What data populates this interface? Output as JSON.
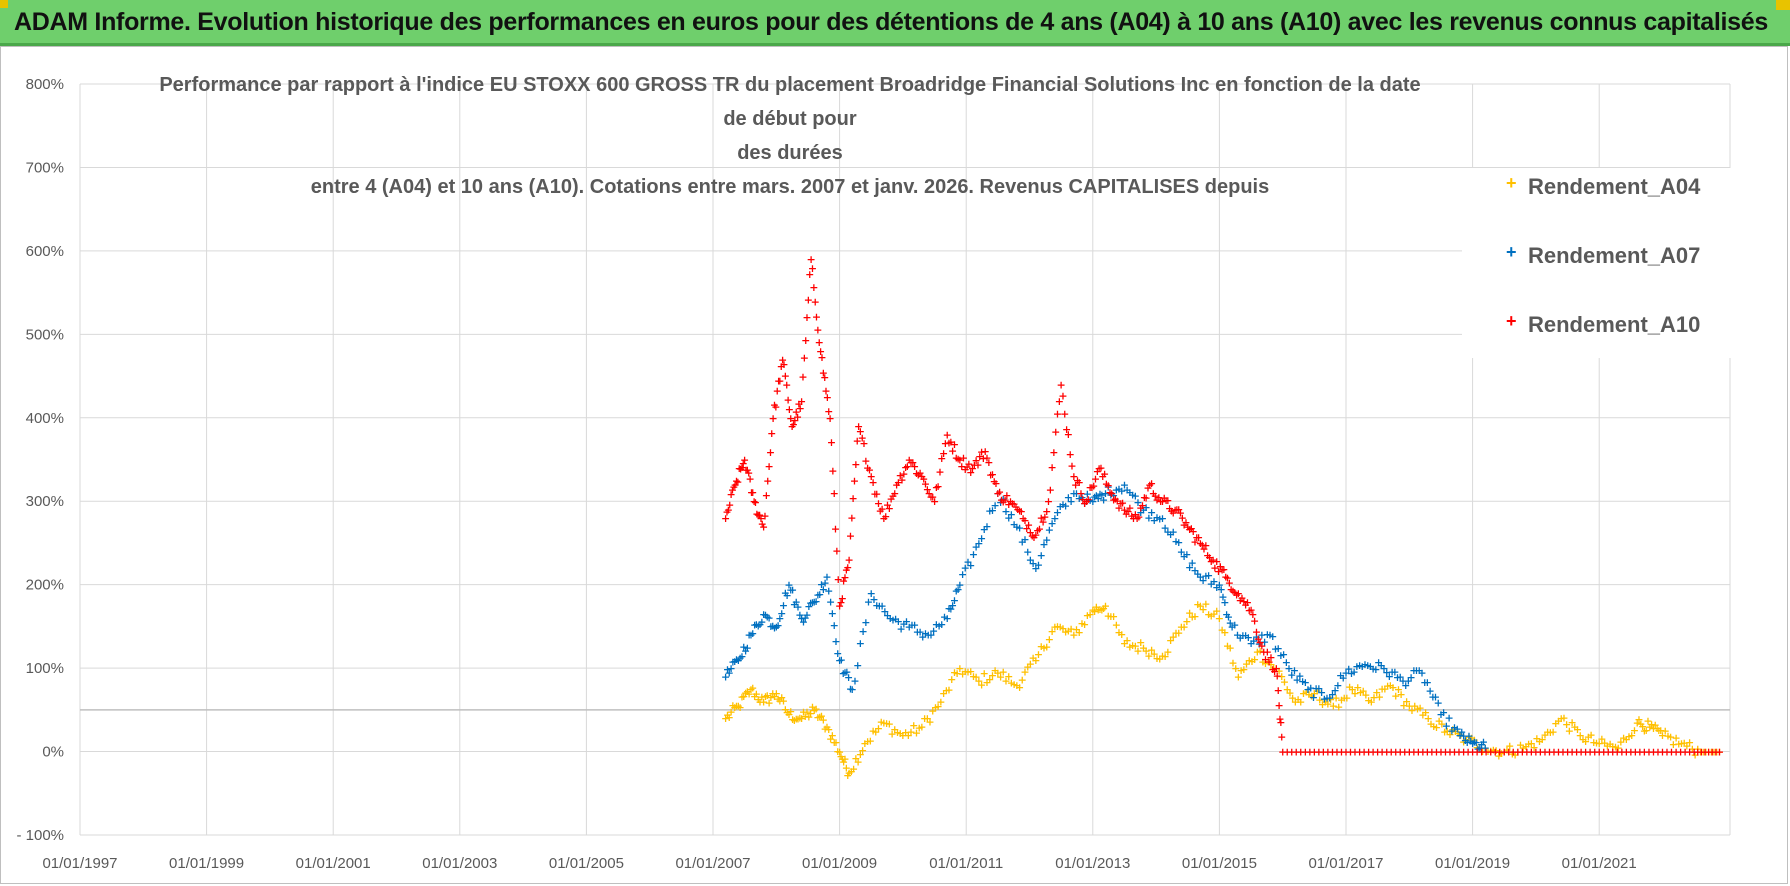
{
  "header": {
    "title": "ADAM Informe. Evolution historique des performances en euros pour des détentions de 4 ans (A04) à 10 ans (A10) avec les revenus connus capitalisés"
  },
  "chart_data": {
    "type": "scatter",
    "title_lines": [
      "Performance par rapport à l'indice EU STOXX 600 GROSS TR  du placement Broadridge Financial Solutions Inc en fonction de la date de début pour",
      "des durées",
      "entre 4 (A04) et 10 ans (A10). Cotations entre mars. 2007 et janv. 2026. Revenus CAPITALISES depuis"
    ],
    "xlabel": "",
    "ylabel": "",
    "xlim": [
      1997.0,
      2022.0
    ],
    "ylim": [
      -100,
      800
    ],
    "x_ticks": [
      "01/01/1997",
      "01/01/1999",
      "01/01/2001",
      "01/01/2003",
      "01/01/2005",
      "01/01/2007",
      "01/01/2009",
      "01/01/2011",
      "01/01/2013",
      "01/01/2015",
      "01/01/2017",
      "01/01/2019",
      "01/01/2021"
    ],
    "y_ticks": [
      "800%",
      "700%",
      "600%",
      "500%",
      "400%",
      "300%",
      "200%",
      "100%",
      "0%",
      "- 100%"
    ],
    "legend_position": "top-right",
    "series": [
      {
        "name": "Rendement_A04",
        "color": "#FFC000",
        "x": [
          2007.2,
          2007.4,
          2007.6,
          2007.8,
          2008.0,
          2008.2,
          2008.4,
          2008.6,
          2008.8,
          2009.0,
          2009.15,
          2009.4,
          2009.7,
          2010.0,
          2010.3,
          2010.6,
          2010.9,
          2011.2,
          2011.5,
          2011.8,
          2012.1,
          2012.4,
          2012.7,
          2013.0,
          2013.2,
          2013.5,
          2013.8,
          2014.1,
          2014.4,
          2014.7,
          2015.0,
          2015.3,
          2015.6,
          2015.9,
          2016.2,
          2016.5,
          2016.8,
          2017.1,
          2017.4,
          2017.7,
          2018.0,
          2018.3,
          2018.6,
          2018.9,
          2019.2,
          2019.5,
          2019.8,
          2020.1,
          2020.4,
          2020.7,
          2021.0,
          2021.3,
          2021.6,
          2021.8,
          2022.0,
          2022.3,
          2022.6,
          2022.9
        ],
        "y": [
          40,
          55,
          75,
          60,
          70,
          45,
          40,
          50,
          30,
          0,
          -25,
          10,
          35,
          20,
          30,
          60,
          100,
          85,
          95,
          80,
          110,
          150,
          140,
          170,
          175,
          130,
          125,
          115,
          150,
          175,
          160,
          90,
          120,
          100,
          60,
          70,
          55,
          75,
          60,
          80,
          55,
          40,
          25,
          15,
          5,
          0,
          5,
          15,
          40,
          20,
          10,
          5,
          35,
          30,
          20,
          10,
          0,
          0
        ]
      },
      {
        "name": "Rendement_A07",
        "color": "#0070C0",
        "x": [
          2007.2,
          2007.4,
          2007.6,
          2007.8,
          2008.0,
          2008.2,
          2008.4,
          2008.6,
          2008.8,
          2009.0,
          2009.2,
          2009.5,
          2009.8,
          2010.1,
          2010.4,
          2010.7,
          2010.9,
          2011.2,
          2011.5,
          2011.8,
          2012.1,
          2012.4,
          2012.7,
          2013.0,
          2013.2,
          2013.5,
          2013.8,
          2014.1,
          2014.4,
          2014.7,
          2015.0,
          2015.2,
          2015.5,
          2015.8,
          2016.1,
          2016.4,
          2016.7,
          2017.0,
          2017.3,
          2017.6,
          2017.9,
          2018.2,
          2018.5,
          2018.8,
          2019.0,
          2019.2
        ],
        "y": [
          90,
          110,
          140,
          165,
          150,
          200,
          160,
          180,
          210,
          110,
          75,
          190,
          160,
          150,
          140,
          160,
          200,
          250,
          310,
          270,
          220,
          280,
          310,
          300,
          310,
          320,
          290,
          280,
          240,
          210,
          200,
          150,
          130,
          140,
          100,
          75,
          65,
          95,
          105,
          100,
          85,
          95,
          45,
          20,
          10,
          5
        ]
      },
      {
        "name": "Rendement_A10",
        "color": "#FF0000",
        "x": [
          2007.2,
          2007.35,
          2007.5,
          2007.65,
          2007.8,
          2007.95,
          2008.1,
          2008.25,
          2008.4,
          2008.55,
          2008.7,
          2008.85,
          2009.0,
          2009.15,
          2009.3,
          2009.5,
          2009.7,
          2009.9,
          2010.1,
          2010.3,
          2010.5,
          2010.7,
          2010.9,
          2011.1,
          2011.3,
          2011.5,
          2011.7,
          2011.9,
          2012.1,
          2012.3,
          2012.5,
          2012.7,
          2012.9,
          2013.1,
          2013.3,
          2013.5,
          2013.7,
          2013.9,
          2014.1,
          2014.3,
          2014.5,
          2014.7,
          2014.9,
          2015.1,
          2015.3,
          2015.5,
          2015.7,
          2015.9,
          2016.0,
          2016.5,
          2017.0,
          2017.5,
          2018.0,
          2018.5,
          2019.0,
          2019.5,
          2020.0,
          2020.5,
          2021.0,
          2021.5,
          2022.0,
          2022.5,
          2022.9
        ],
        "y": [
          280,
          320,
          350,
          300,
          270,
          400,
          470,
          390,
          420,
          590,
          480,
          400,
          175,
          230,
          390,
          330,
          280,
          320,
          350,
          330,
          300,
          380,
          350,
          340,
          360,
          310,
          300,
          280,
          260,
          300,
          440,
          330,
          300,
          340,
          310,
          290,
          280,
          320,
          300,
          290,
          270,
          250,
          230,
          210,
          190,
          170,
          120,
          100,
          0,
          0,
          0,
          0,
          0,
          0,
          0,
          0,
          0,
          0,
          0,
          0,
          0,
          0,
          0
        ]
      }
    ]
  }
}
